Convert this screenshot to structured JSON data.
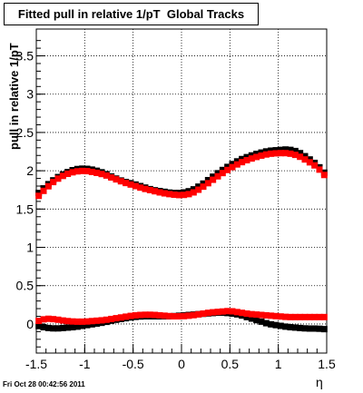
{
  "title": "Fitted pull in relative 1/pT  Global Tracks",
  "timestamp": "Fri Oct 28 00:42:56 2011",
  "chart_data": {
    "type": "scatter",
    "xlabel": "η",
    "ylabel": "pull in relative 1/pT",
    "xlim": [
      -1.5,
      1.5
    ],
    "ylim": [
      -0.38,
      3.85
    ],
    "grid": true,
    "x_ticks": [
      "-1.5",
      "-1",
      "-0.5",
      "0",
      "0.5",
      "1",
      "1.5"
    ],
    "y_ticks": [
      "0",
      "0.5",
      "1",
      "1.5",
      "2",
      "2.5",
      "3",
      "3.5"
    ],
    "x": [
      -1.5,
      -1.4,
      -1.3,
      -1.2,
      -1.1,
      -1.0,
      -0.9,
      -0.8,
      -0.7,
      -0.6,
      -0.5,
      -0.4,
      -0.3,
      -0.2,
      -0.1,
      0.0,
      0.1,
      0.2,
      0.3,
      0.4,
      0.5,
      0.6,
      0.7,
      0.8,
      0.9,
      1.0,
      1.1,
      1.2,
      1.3,
      1.4,
      1.5
    ],
    "series": [
      {
        "color": "#000000",
        "values": [
          1.68,
          1.8,
          1.9,
          1.97,
          2.02,
          2.03,
          2.01,
          1.97,
          1.91,
          1.86,
          1.83,
          1.79,
          1.75,
          1.73,
          1.71,
          1.71,
          1.74,
          1.81,
          1.9,
          1.99,
          2.07,
          2.14,
          2.19,
          2.23,
          2.26,
          2.27,
          2.28,
          2.25,
          2.17,
          2.08,
          1.94
        ]
      },
      {
        "color": "#ff0000",
        "values": [
          1.64,
          1.77,
          1.88,
          1.95,
          1.99,
          2.0,
          1.98,
          1.95,
          1.9,
          1.85,
          1.81,
          1.77,
          1.74,
          1.71,
          1.69,
          1.68,
          1.7,
          1.77,
          1.86,
          1.95,
          2.03,
          2.1,
          2.15,
          2.19,
          2.22,
          2.23,
          2.23,
          2.2,
          2.13,
          2.05,
          1.91
        ]
      },
      {
        "color": "#000000",
        "values": [
          -0.02,
          -0.05,
          -0.06,
          -0.05,
          -0.04,
          -0.02,
          0.0,
          0.02,
          0.05,
          0.07,
          0.09,
          0.1,
          0.1,
          0.1,
          0.1,
          0.11,
          0.12,
          0.13,
          0.14,
          0.15,
          0.14,
          0.12,
          0.08,
          0.04,
          0.0,
          -0.02,
          -0.04,
          -0.05,
          -0.06,
          -0.06,
          -0.07
        ]
      },
      {
        "color": "#ff0000",
        "values": [
          0.03,
          0.07,
          0.06,
          0.04,
          0.03,
          0.03,
          0.04,
          0.05,
          0.07,
          0.09,
          0.11,
          0.12,
          0.12,
          0.11,
          0.1,
          0.1,
          0.11,
          0.13,
          0.15,
          0.16,
          0.17,
          0.15,
          0.13,
          0.12,
          0.11,
          0.1,
          0.09,
          0.09,
          0.09,
          0.09,
          0.09
        ]
      }
    ]
  }
}
